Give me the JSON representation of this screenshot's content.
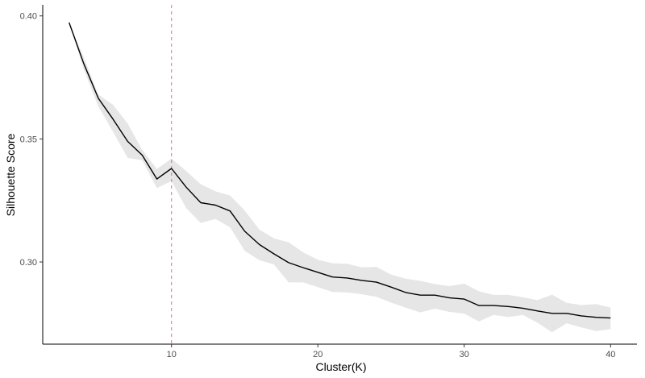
{
  "chart_data": {
    "type": "line",
    "title": "",
    "xlabel": "Cluster(K)",
    "ylabel": "Silhouette Score",
    "xlim": [
      1.2,
      41.8
    ],
    "ylim": [
      0.2666,
      0.4045
    ],
    "x_ticks": [
      10,
      20,
      30,
      40
    ],
    "x_tick_labels": [
      "10",
      "20",
      "30",
      "40"
    ],
    "y_ticks": [
      0.3,
      0.35,
      0.4
    ],
    "y_tick_labels": [
      "0.30",
      "0.35",
      "0.40"
    ],
    "grid": false,
    "legend": "none",
    "vline": {
      "x": 10,
      "color": "#e8706a",
      "style": "dashed"
    },
    "series": [
      {
        "type": "line",
        "color": "#000000",
        "band_color": "#e6e6e6",
        "x": [
          3,
          4,
          5,
          6,
          7,
          8,
          9,
          10,
          11,
          12,
          13,
          14,
          15,
          16,
          17,
          18,
          19,
          20,
          21,
          22,
          23,
          24,
          25,
          26,
          27,
          28,
          29,
          30,
          31,
          32,
          33,
          34,
          35,
          36,
          37,
          38,
          39,
          40
        ],
        "y": [
          0.3973,
          0.3807,
          0.3665,
          0.3581,
          0.349,
          0.3434,
          0.3337,
          0.338,
          0.3304,
          0.3241,
          0.3231,
          0.3207,
          0.3125,
          0.3071,
          0.3033,
          0.2997,
          0.2977,
          0.2958,
          0.2939,
          0.2935,
          0.2925,
          0.2918,
          0.2898,
          0.2876,
          0.2865,
          0.2865,
          0.2854,
          0.2849,
          0.2823,
          0.2823,
          0.2819,
          0.2812,
          0.2801,
          0.2791,
          0.2791,
          0.2781,
          0.2775,
          0.2772
        ],
        "lower": [
          0.3973,
          0.3784,
          0.3632,
          0.353,
          0.3423,
          0.3413,
          0.33,
          0.3329,
          0.3219,
          0.3158,
          0.3175,
          0.3141,
          0.3045,
          0.3007,
          0.299,
          0.2917,
          0.2917,
          0.2898,
          0.2878,
          0.2876,
          0.2869,
          0.2858,
          0.2835,
          0.2814,
          0.2795,
          0.281,
          0.2797,
          0.279,
          0.2758,
          0.2785,
          0.2776,
          0.2785,
          0.2753,
          0.2714,
          0.2751,
          0.2734,
          0.2719,
          0.2727
        ],
        "upper": [
          0.3973,
          0.3832,
          0.368,
          0.3639,
          0.3563,
          0.3455,
          0.3378,
          0.342,
          0.337,
          0.3316,
          0.3287,
          0.327,
          0.3209,
          0.3131,
          0.3096,
          0.308,
          0.3039,
          0.3009,
          0.2995,
          0.2993,
          0.2978,
          0.298,
          0.2949,
          0.2932,
          0.2923,
          0.291,
          0.2902,
          0.2912,
          0.2881,
          0.2866,
          0.2866,
          0.2857,
          0.2845,
          0.2867,
          0.2834,
          0.2825,
          0.2829,
          0.2815
        ]
      }
    ]
  }
}
